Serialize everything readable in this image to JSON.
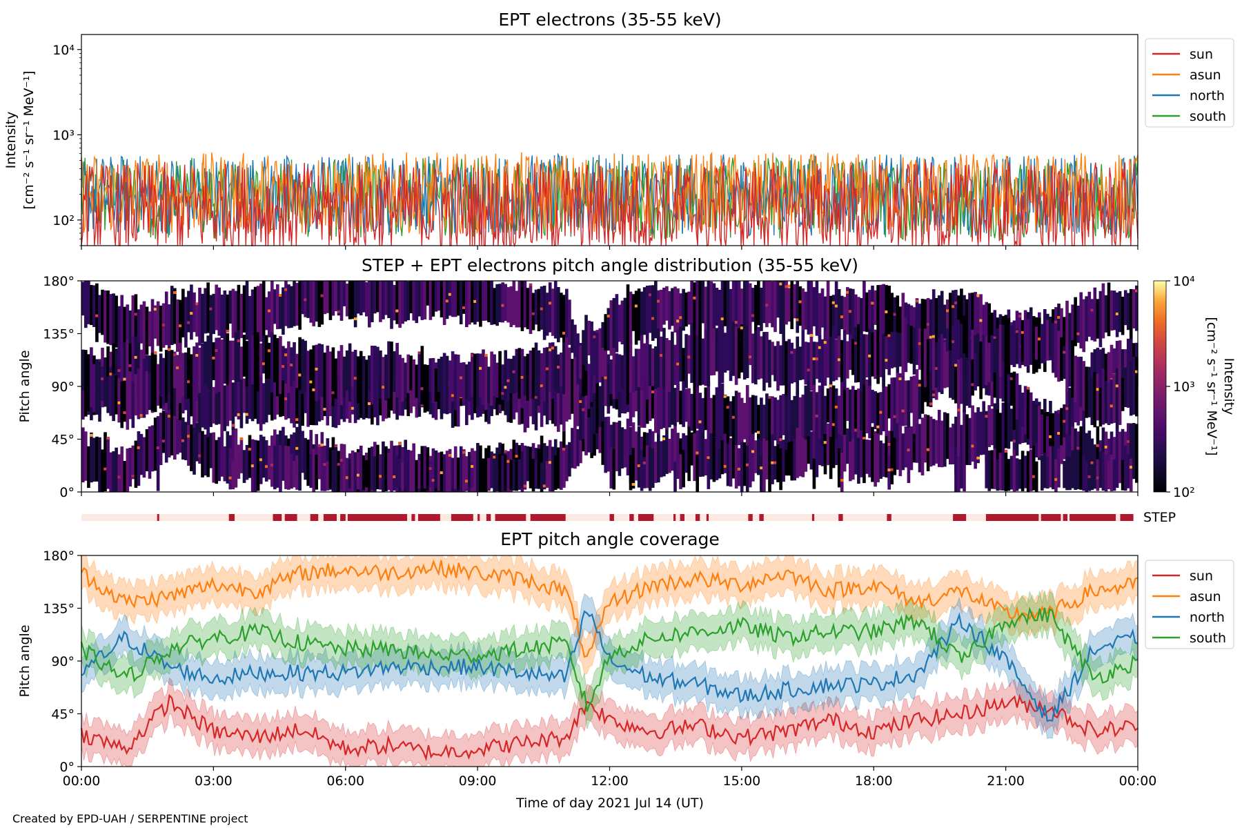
{
  "figure": {
    "footer": "Created by EPD-UAH / SERPENTINE project",
    "xlabel": "Time of day 2021 Jul 14 (UT)",
    "x_ticks": [
      "00:00",
      "03:00",
      "06:00",
      "09:00",
      "12:00",
      "15:00",
      "18:00",
      "21:00",
      "00:00"
    ]
  },
  "colors": {
    "sun": "#d62728",
    "asun": "#ff7f0e",
    "north": "#1f77b4",
    "south": "#2ca02c",
    "step": "#b2182b",
    "step_bg": "#fde9e3"
  },
  "chart_data": [
    {
      "type": "line",
      "title": "EPT electrons (35-55 keV)",
      "ylabel_line1": "Intensity",
      "ylabel_line2": "[cm⁻² s⁻¹ sr⁻¹ MeV⁻¹]",
      "yscale": "log",
      "ylim": [
        50,
        15000
      ],
      "y_ticks": [
        {
          "value": 100,
          "label": "10²"
        },
        {
          "value": 1000,
          "label": "10³"
        },
        {
          "value": 10000,
          "label": "10⁴"
        }
      ],
      "x_range_hours": [
        0,
        24
      ],
      "legend_position": "outside-right-top",
      "series": [
        {
          "name": "sun",
          "color": "#d62728",
          "typical": 150,
          "spread": 0.35
        },
        {
          "name": "asun",
          "color": "#ff7f0e",
          "typical": 230,
          "spread": 0.3
        },
        {
          "name": "north",
          "color": "#1f77b4",
          "typical": 220,
          "spread": 0.3
        },
        {
          "name": "south",
          "color": "#2ca02c",
          "typical": 200,
          "spread": 0.3
        }
      ]
    },
    {
      "type": "heatmap",
      "title": "STEP + EPT electrons pitch angle distribution (35-55 keV)",
      "ylabel": "Pitch angle",
      "ylim": [
        0,
        180
      ],
      "y_ticks": [
        "0°",
        "45°",
        "90°",
        "135°",
        "180°"
      ],
      "colorbar": {
        "label_line1": "Intensity",
        "label_line2": "[cm⁻² s⁻¹ sr⁻¹ MeV⁻¹]",
        "scale": "log",
        "range": [
          100,
          10000
        ],
        "ticks": [
          "10²",
          "10³",
          "10⁴"
        ],
        "colormap": "inferno"
      }
    },
    {
      "type": "coverage",
      "label": "STEP",
      "active_intervals_hours": [
        [
          1.72,
          1.76
        ],
        [
          3.35,
          3.48
        ],
        [
          4.35,
          4.55
        ],
        [
          4.62,
          4.9
        ],
        [
          5.2,
          5.38
        ],
        [
          5.5,
          5.8
        ],
        [
          5.88,
          6.0
        ],
        [
          6.05,
          7.4
        ],
        [
          7.5,
          7.58
        ],
        [
          7.65,
          8.15
        ],
        [
          8.4,
          8.9
        ],
        [
          9.0,
          9.05
        ],
        [
          9.2,
          9.3
        ],
        [
          9.4,
          10.1
        ],
        [
          10.2,
          11.0
        ],
        [
          12.0,
          12.1
        ],
        [
          12.45,
          12.55
        ],
        [
          12.65,
          13.0
        ],
        [
          13.45,
          13.5
        ],
        [
          13.6,
          13.7
        ],
        [
          13.95,
          14.05
        ],
        [
          14.2,
          14.25
        ],
        [
          15.15,
          15.25
        ],
        [
          15.4,
          15.5
        ],
        [
          16.6,
          16.65
        ],
        [
          17.2,
          17.3
        ],
        [
          18.3,
          18.4
        ],
        [
          19.8,
          20.1
        ],
        [
          20.55,
          21.75
        ],
        [
          21.8,
          22.25
        ],
        [
          22.3,
          22.4
        ],
        [
          22.45,
          23.5
        ],
        [
          23.6,
          23.9
        ]
      ]
    },
    {
      "type": "line",
      "title": "EPT pitch angle coverage",
      "ylabel": "Pitch angle",
      "ylim": [
        0,
        180
      ],
      "y_ticks": [
        "0°",
        "45°",
        "90°",
        "135°",
        "180°"
      ],
      "x_range_hours": [
        0,
        24
      ],
      "legend_position": "outside-right-top",
      "series": [
        {
          "name": "sun",
          "color": "#d62728",
          "x": [
            0,
            1,
            2,
            3,
            4,
            5,
            6,
            7,
            8,
            9,
            10,
            11,
            11.5,
            12,
            13,
            14,
            15,
            16,
            17,
            18,
            19,
            20,
            21,
            22,
            23,
            24
          ],
          "values": [
            28,
            15,
            55,
            30,
            25,
            32,
            15,
            18,
            12,
            15,
            20,
            25,
            55,
            40,
            30,
            35,
            25,
            30,
            40,
            30,
            40,
            45,
            55,
            50,
            30,
            35
          ]
        },
        {
          "name": "asun",
          "color": "#ff7f0e",
          "x": [
            0,
            1,
            2,
            3,
            4,
            5,
            6,
            7,
            8,
            9,
            10,
            11,
            11.5,
            12,
            13,
            14,
            15,
            16,
            17,
            18,
            19,
            20,
            21,
            22,
            23,
            24
          ],
          "values": [
            165,
            140,
            145,
            155,
            150,
            165,
            168,
            165,
            170,
            165,
            160,
            150,
            90,
            140,
            155,
            160,
            155,
            165,
            150,
            155,
            140,
            150,
            130,
            130,
            150,
            155
          ]
        },
        {
          "name": "north",
          "color": "#1f77b4",
          "x": [
            0,
            1,
            2,
            3,
            4,
            5,
            6,
            7,
            8,
            9,
            10,
            11,
            11.5,
            12,
            13,
            14,
            15,
            16,
            17,
            18,
            19,
            20,
            21,
            22,
            23,
            24
          ],
          "values": [
            80,
            110,
            85,
            75,
            80,
            80,
            80,
            85,
            85,
            85,
            80,
            75,
            135,
            90,
            75,
            70,
            60,
            65,
            70,
            70,
            80,
            125,
            90,
            40,
            100,
            110
          ]
        },
        {
          "name": "south",
          "color": "#2ca02c",
          "x": [
            0,
            1,
            2,
            3,
            4,
            5,
            6,
            7,
            8,
            9,
            10,
            11,
            11.5,
            12,
            13,
            14,
            15,
            16,
            17,
            18,
            19,
            20,
            21,
            22,
            23,
            24
          ],
          "values": [
            100,
            75,
            100,
            110,
            115,
            105,
            100,
            100,
            95,
            95,
            100,
            105,
            50,
            95,
            110,
            115,
            120,
            110,
            115,
            115,
            125,
            90,
            125,
            130,
            75,
            90
          ]
        }
      ]
    }
  ]
}
